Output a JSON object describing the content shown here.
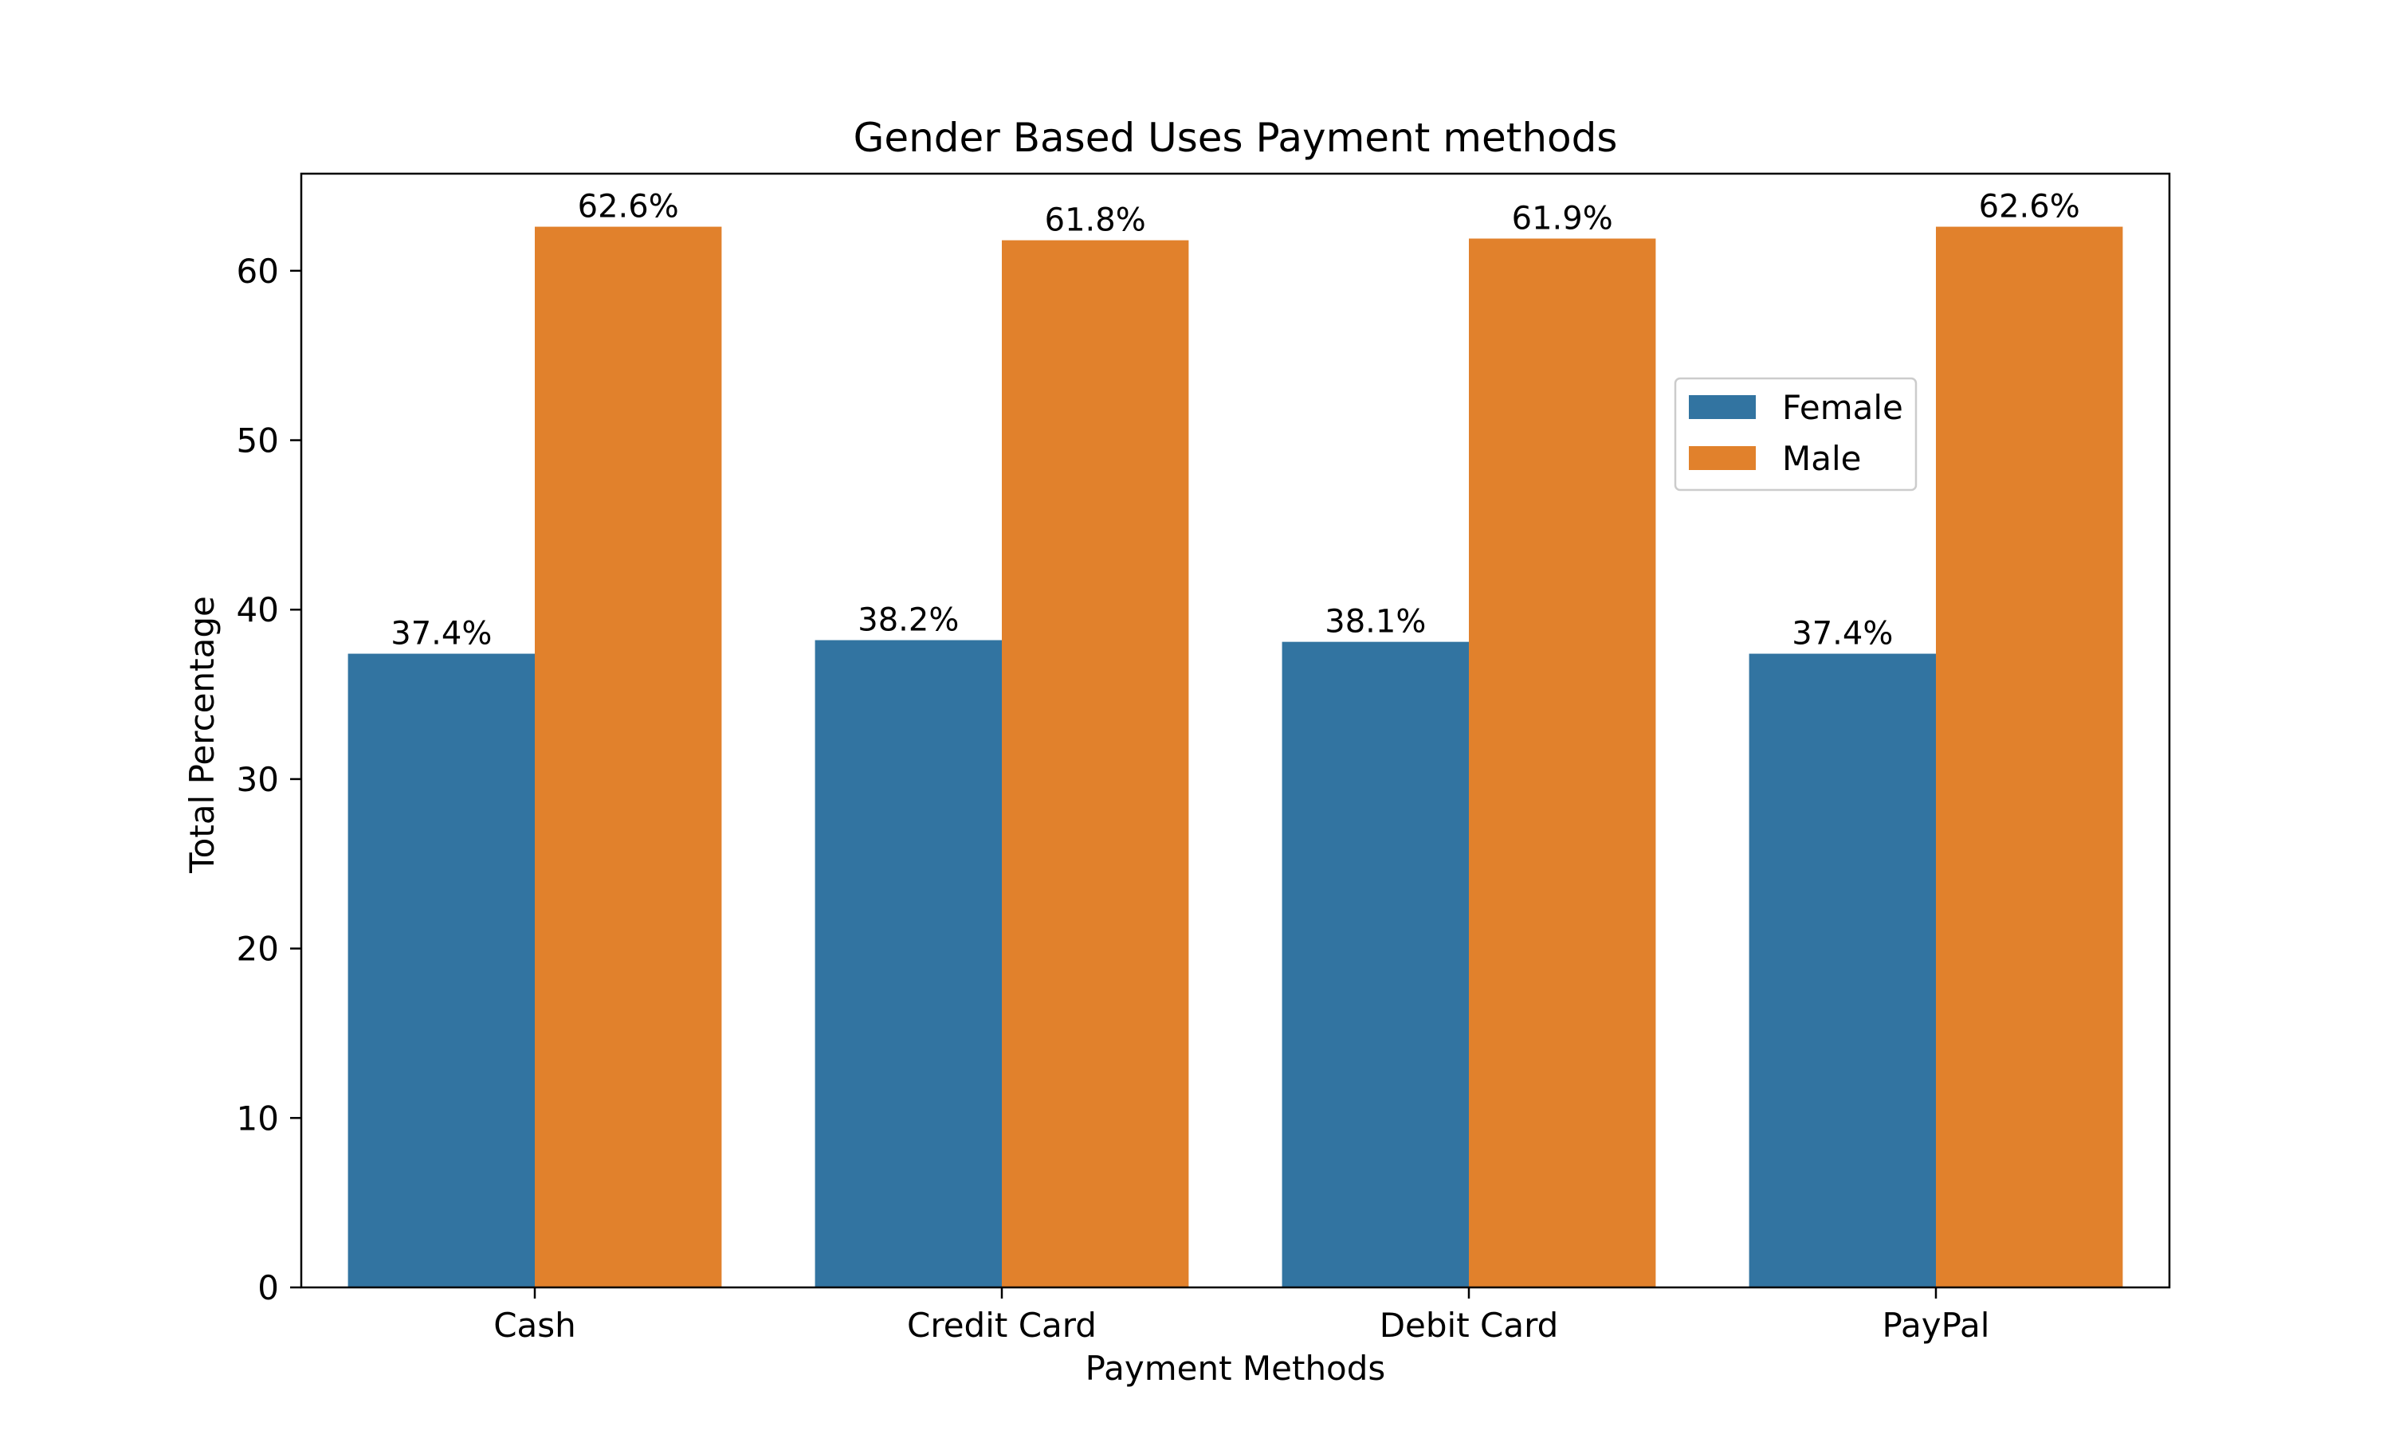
{
  "colors": {
    "Female": "#3274a1",
    "Male": "#e1812c"
  },
  "legend": {
    "placement": "center-right",
    "entries": [
      "Female",
      "Male"
    ]
  },
  "chart_data": {
    "type": "bar",
    "title": "Gender Based Uses Payment methods",
    "xlabel": "Payment Methods",
    "ylabel": "Total Percentage",
    "categories": [
      "Cash",
      "Credit Card",
      "Debit Card",
      "PayPal"
    ],
    "series": [
      {
        "name": "Female",
        "values": [
          37.4,
          38.2,
          38.1,
          37.4
        ],
        "labels": [
          "37.4%",
          "38.2%",
          "38.1%",
          "37.4%"
        ]
      },
      {
        "name": "Male",
        "values": [
          62.6,
          61.8,
          61.9,
          62.6
        ],
        "labels": [
          "62.6%",
          "61.8%",
          "61.9%",
          "62.6%"
        ]
      }
    ],
    "ylim": [
      0,
      65.73
    ],
    "yticks": [
      0,
      10,
      20,
      30,
      40,
      50,
      60
    ],
    "grid": false
  }
}
